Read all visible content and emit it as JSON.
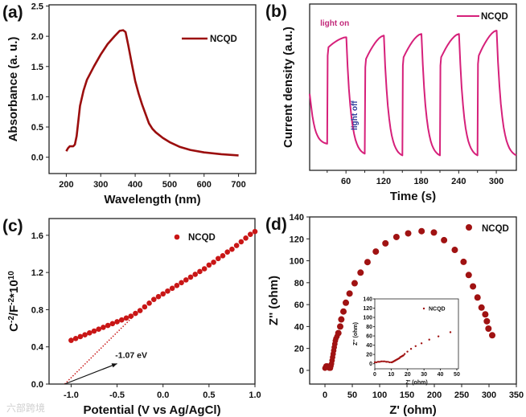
{
  "colors": {
    "a": "#9b0e0e",
    "b": "#d6207a",
    "c": "#c91616",
    "d": "#a01212",
    "light_on": "#c2297a",
    "light_off": "#2a3a9a",
    "arrow": "#111111"
  },
  "watermark": "六部跨境",
  "chart_data": [
    {
      "panel": "(a)",
      "type": "line",
      "xlabel": "Wavelength (nm)",
      "ylabel": "Absorbance (a. u.)",
      "xlim": [
        150,
        750
      ],
      "ylim": [
        -0.27,
        2.52
      ],
      "xticks": [
        "200",
        "300",
        "400",
        "500",
        "600",
        "700"
      ],
      "xtick_values": [
        200,
        300,
        400,
        500,
        600,
        700
      ],
      "yticks": [
        "0.0",
        "0.5",
        "1.0",
        "1.5",
        "2.0",
        "2.5"
      ],
      "ytick_values": [
        0,
        0.5,
        1.0,
        1.5,
        2.0,
        2.5
      ],
      "legend": "NCQD",
      "legend_placement": "top-right",
      "series": [
        {
          "name": "NCQD",
          "x": [
            200,
            205,
            210,
            220,
            225,
            230,
            235,
            240,
            250,
            260,
            280,
            300,
            320,
            340,
            355,
            365,
            372,
            380,
            390,
            400,
            410,
            420,
            440,
            450,
            460,
            480,
            500,
            530,
            560,
            600,
            650,
            700
          ],
          "y": [
            0.1,
            0.15,
            0.18,
            0.18,
            0.21,
            0.35,
            0.6,
            0.85,
            1.1,
            1.28,
            1.5,
            1.7,
            1.87,
            2.0,
            2.09,
            2.1,
            2.07,
            1.85,
            1.55,
            1.26,
            1.05,
            0.87,
            0.56,
            0.47,
            0.41,
            0.32,
            0.25,
            0.17,
            0.12,
            0.08,
            0.05,
            0.03
          ]
        }
      ]
    },
    {
      "panel": "(b)",
      "type": "line",
      "xlabel": "Time (s)",
      "ylabel": "Current density (a.u.)",
      "xlim": [
        2,
        332
      ],
      "ylim": [
        0,
        1
      ],
      "xticks": [
        "60",
        "120",
        "180",
        "240",
        "300"
      ],
      "xtick_values": [
        60,
        120,
        180,
        240,
        300
      ],
      "minor_xtick_values": [
        30,
        90,
        150,
        210,
        270
      ],
      "legend": "NCQD",
      "legend_placement": "top-right",
      "annotations": [
        {
          "text": "light on",
          "x": 42,
          "y": 0.87
        },
        {
          "text": "light off",
          "x": 78,
          "y": 0.33,
          "rotation": "vertical"
        }
      ],
      "initial": {
        "t": 2,
        "y": 0.46
      },
      "cycles": [
        {
          "on": 30,
          "off": 60,
          "min_before": 0.16,
          "start": 0.74,
          "peak": 0.8
        },
        {
          "on": 90,
          "off": 120,
          "min_before": 0.1,
          "start": 0.67,
          "peak": 0.81
        },
        {
          "on": 150,
          "off": 180,
          "min_before": 0.09,
          "start": 0.68,
          "peak": 0.82
        },
        {
          "on": 210,
          "off": 240,
          "min_before": 0.09,
          "start": 0.68,
          "peak": 0.82
        },
        {
          "on": 270,
          "off": 300,
          "min_before": 0.09,
          "start": 0.69,
          "peak": 0.84
        }
      ],
      "final": {
        "t": 332,
        "y": 0.09
      }
    },
    {
      "panel": "(c)",
      "type": "scatter",
      "xlabel": "Potential (V vs Ag/AgCl)",
      "ylabel_parts": {
        "a": "C",
        "sa": "-2",
        "b": "/F",
        "sb": "-2",
        "c": "*10",
        "sc": "10"
      },
      "xlim": [
        -1.24,
        1.0
      ],
      "ylim": [
        0,
        1.78
      ],
      "xticks": [
        "-1.0",
        "-0.5",
        "0.0",
        "0.5",
        "1.0"
      ],
      "xtick_values": [
        -1.0,
        -0.5,
        0.0,
        0.5,
        1.0
      ],
      "yticks": [
        "0.0",
        "0.4",
        "0.8",
        "1.2",
        "1.6"
      ],
      "ytick_values": [
        0,
        0.4,
        0.8,
        1.2,
        1.6
      ],
      "legend": "NCQD",
      "legend_placement": "top",
      "fit_line": {
        "x": [
          -1.07,
          -0.25
        ],
        "y": [
          0,
          0.8
        ]
      },
      "annotation": {
        "text": "-1.07 eV",
        "x": -0.52,
        "y": 0.28,
        "arrow_from": [
          -1.07,
          0.0
        ],
        "arrow_to": [
          -0.5,
          0.22
        ]
      },
      "series": [
        {
          "name": "NCQD",
          "x": [
            -1.0,
            -0.95,
            -0.9,
            -0.85,
            -0.8,
            -0.75,
            -0.7,
            -0.65,
            -0.6,
            -0.55,
            -0.5,
            -0.45,
            -0.4,
            -0.35,
            -0.3,
            -0.25,
            -0.2,
            -0.15,
            -0.1,
            -0.05,
            0,
            0.05,
            0.1,
            0.15,
            0.2,
            0.25,
            0.3,
            0.35,
            0.4,
            0.45,
            0.5,
            0.55,
            0.6,
            0.65,
            0.7,
            0.75,
            0.8,
            0.85,
            0.9,
            0.95,
            1.0
          ],
          "y": [
            0.47,
            0.49,
            0.51,
            0.53,
            0.55,
            0.57,
            0.59,
            0.61,
            0.63,
            0.65,
            0.67,
            0.69,
            0.71,
            0.73,
            0.76,
            0.79,
            0.83,
            0.87,
            0.91,
            0.94,
            0.97,
            1.0,
            1.03,
            1.06,
            1.09,
            1.12,
            1.15,
            1.18,
            1.21,
            1.24,
            1.28,
            1.31,
            1.35,
            1.38,
            1.42,
            1.45,
            1.49,
            1.53,
            1.57,
            1.61,
            1.64
          ]
        }
      ]
    },
    {
      "panel": "(d)",
      "type": "scatter",
      "xlabel": "Z' (ohm)",
      "ylabel": "Z'' (ohm)",
      "xlim": [
        -28,
        350
      ],
      "ylim": [
        -12.5,
        140
      ],
      "xticks": [
        "0",
        "50",
        "100",
        "150",
        "200",
        "250",
        "300",
        "350"
      ],
      "xtick_values": [
        0,
        50,
        100,
        150,
        200,
        250,
        300,
        350
      ],
      "yticks": [
        "0",
        "20",
        "40",
        "60",
        "80",
        "100",
        "120",
        "140"
      ],
      "ytick_values": [
        0,
        20,
        40,
        60,
        80,
        100,
        120,
        140
      ],
      "legend": "NCQD",
      "legend_placement": "top-right",
      "series": [
        {
          "name": "NCQD",
          "x": [
            0,
            1,
            2,
            3,
            4,
            5,
            6,
            7,
            8,
            9,
            10,
            11,
            12,
            13,
            14,
            15,
            16,
            17,
            18,
            19,
            20,
            22,
            24.5,
            27.9,
            29.9,
            33.8,
            38.2,
            45,
            54.3,
            65.1,
            77.8,
            93,
            110.6,
            130.7,
            152.2,
            176.7,
            199.2,
            217.8,
            237.4,
            253.5,
            262.9,
            270.7,
            279,
            286.3,
            293.2,
            296.1,
            299,
            305.9
          ],
          "y": [
            2,
            3,
            4,
            4,
            3,
            4,
            3,
            3,
            2,
            3,
            2,
            4,
            6,
            9,
            12,
            15,
            18,
            21,
            24,
            27,
            29,
            31,
            34,
            40,
            46.5,
            53.7,
            61.7,
            70.1,
            79.5,
            89.2,
            98.8,
            108.4,
            115.9,
            121.7,
            125,
            127,
            125.8,
            118.8,
            109.9,
            99,
            87,
            76.6,
            66.5,
            57.3,
            51.1,
            44.8,
            38.1,
            32
          ]
        }
      ],
      "inset": {
        "xlabel": "Z' (ohm)",
        "ylabel": "Z'' (ohm)",
        "xlim": [
          0,
          51
        ],
        "ylim": [
          -11,
          140
        ],
        "xticks": [
          "0",
          "10",
          "20",
          "30",
          "40",
          "50"
        ],
        "xtick_values": [
          0,
          10,
          20,
          30,
          40,
          50
        ],
        "yticks": [
          "0",
          "20",
          "40",
          "60",
          "80",
          "100",
          "120",
          "140"
        ],
        "ytick_values": [
          0,
          20,
          40,
          60,
          80,
          100,
          120,
          140
        ],
        "legend": "NCQD",
        "series": [
          {
            "name": "NCQD",
            "x": [
              0,
              1,
              2,
              3,
              4,
              5,
              6,
              7,
              8,
              9,
              10,
              10.5,
              11,
              11.5,
              12,
              12.5,
              13,
              13.5,
              14,
              14.5,
              15,
              15.5,
              16,
              16.5,
              17,
              17.5,
              18.2,
              19.9,
              22.1,
              24.9,
              28.5,
              33.2,
              38.8,
              46.1
            ],
            "y": [
              3,
              3,
              4,
              4,
              5,
              5,
              5,
              4,
              4,
              3,
              3,
              3,
              4,
              5,
              6,
              7,
              8,
              9,
              10,
              11,
              12,
              14,
              15,
              16,
              17,
              18,
              21,
              26,
              32,
              38,
              44,
              52,
              59,
              68
            ]
          }
        ]
      }
    }
  ]
}
